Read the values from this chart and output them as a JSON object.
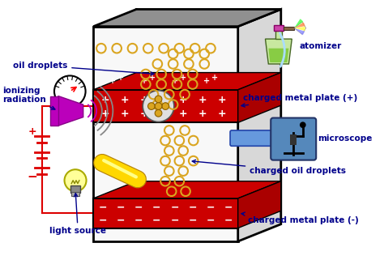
{
  "background_color": "#ffffff",
  "label_color": "#00008B",
  "label_fontsize": 7.5,
  "labels": {
    "oil_droplets": "oil droplets",
    "atomizer": "atomizer",
    "charged_plate_pos": "charged metal plate (+)",
    "microscope": "microscope",
    "charged_oil": "charged oil droplets",
    "charged_plate_neg": "charged metal plate (-)",
    "ionizing": "ionizing\nradiation",
    "light_source": "light source"
  },
  "plate_color": "#CC0000",
  "droplet_edge_color": "#DAA520",
  "box_front_color": "#f8f8f8",
  "box_top_color": "#909090",
  "box_right_color": "#c8c8c8",
  "wire_color": "#DD0000"
}
